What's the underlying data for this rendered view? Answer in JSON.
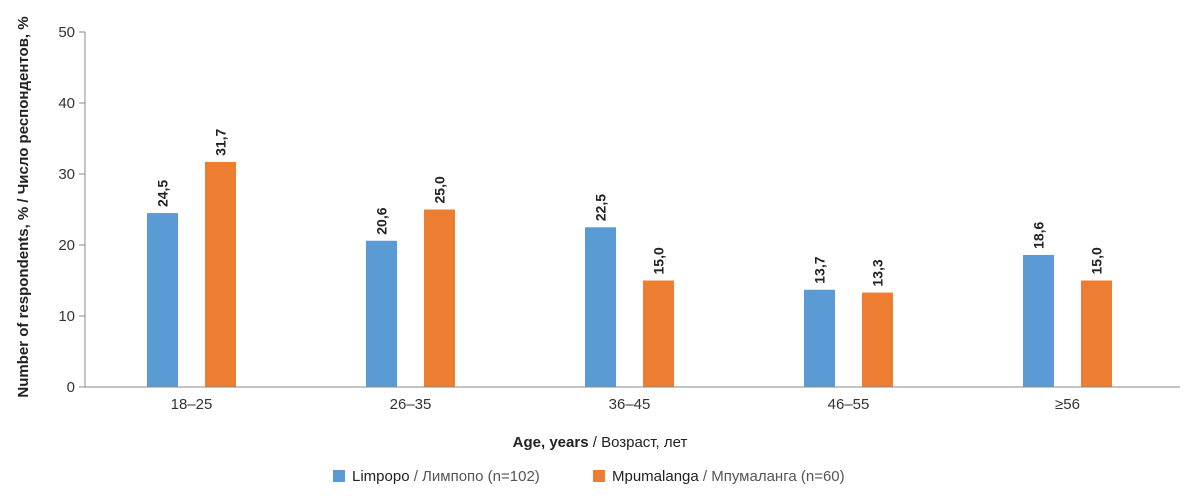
{
  "chart_data": {
    "type": "bar",
    "categories": [
      "18–25",
      "26–35",
      "36–45",
      "46–55",
      "≥56"
    ],
    "series": [
      {
        "name": "Limpopo / Лимпопо (n=102)",
        "name_en": "Limpopo",
        "name_ru": "/ Лимпопо (n=102)",
        "color": "#5b9bd5",
        "values": [
          24.5,
          20.6,
          22.5,
          13.7,
          18.6
        ],
        "labels": [
          "24,5",
          "20,6",
          "22,5",
          "13,7",
          "18,6"
        ]
      },
      {
        "name": "Mpumalanga / Мпумаланга (n=60)",
        "name_en": "Mpumalanga",
        "name_ru": "/ Мпумаланга (n=60)",
        "color": "#ed7d31",
        "values": [
          31.7,
          25.0,
          15.0,
          13.3,
          15.0
        ],
        "labels": [
          "31,7",
          "25,0",
          "15,0",
          "13,3",
          "15,0"
        ]
      }
    ],
    "ylim": [
      0,
      50
    ],
    "yticks": [
      "0",
      "10",
      "20",
      "30",
      "40",
      "50"
    ],
    "xlabel": {
      "en": "Age, years",
      "ru": "/ Возраст, лет"
    },
    "ylabel": "Number of respondents, % / Число респондентов, %",
    "grid": false,
    "legend_position": "bottom"
  }
}
